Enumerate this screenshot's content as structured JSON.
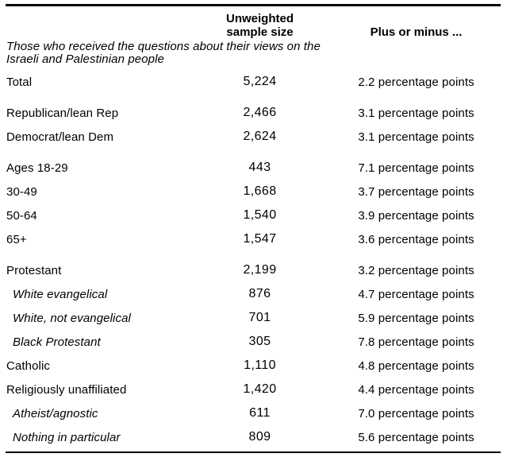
{
  "table": {
    "colors": {
      "text": "#000000",
      "rule": "#000000",
      "background": "#ffffff"
    },
    "header": {
      "sample_size_line1": "Unweighted",
      "sample_size_line2": "sample size",
      "moe": "Plus or minus ..."
    },
    "descriptor": "Those who received the questions about their views on the Israeli and Palestinian people",
    "rows": [
      {
        "label": "Total",
        "sample_size": "5,224",
        "moe": "2.2 percentage points",
        "italic": false,
        "group_start": false
      },
      {
        "label": "Republican/lean Rep",
        "sample_size": "2,466",
        "moe": "3.1 percentage points",
        "italic": false,
        "group_start": true
      },
      {
        "label": "Democrat/lean Dem",
        "sample_size": "2,624",
        "moe": "3.1 percentage points",
        "italic": false,
        "group_start": false
      },
      {
        "label": "Ages 18-29",
        "sample_size": "443",
        "moe": "7.1 percentage points",
        "italic": false,
        "group_start": true
      },
      {
        "label": "30-49",
        "sample_size": "1,668",
        "moe": "3.7 percentage points",
        "italic": false,
        "group_start": false
      },
      {
        "label": "50-64",
        "sample_size": "1,540",
        "moe": "3.9 percentage points",
        "italic": false,
        "group_start": false
      },
      {
        "label": "65+",
        "sample_size": "1,547",
        "moe": "3.6 percentage points",
        "italic": false,
        "group_start": false
      },
      {
        "label": "Protestant",
        "sample_size": "2,199",
        "moe": "3.2 percentage points",
        "italic": false,
        "group_start": true
      },
      {
        "label": "White evangelical",
        "sample_size": "876",
        "moe": "4.7 percentage points",
        "italic": true,
        "group_start": false
      },
      {
        "label": "White, not evangelical",
        "sample_size": "701",
        "moe": "5.9 percentage points",
        "italic": true,
        "group_start": false
      },
      {
        "label": "Black Protestant",
        "sample_size": "305",
        "moe": "7.8 percentage points",
        "italic": true,
        "group_start": false
      },
      {
        "label": "Catholic",
        "sample_size": "1,110",
        "moe": "4.8 percentage points",
        "italic": false,
        "group_start": false
      },
      {
        "label": "Religiously unaffiliated",
        "sample_size": "1,420",
        "moe": "4.4 percentage points",
        "italic": false,
        "group_start": false
      },
      {
        "label": "Atheist/agnostic",
        "sample_size": "611",
        "moe": "7.0 percentage points",
        "italic": true,
        "group_start": false
      },
      {
        "label": "Nothing in particular",
        "sample_size": "809",
        "moe": "5.6 percentage points",
        "italic": true,
        "group_start": false
      }
    ]
  },
  "chart_data": {
    "type": "table",
    "title": "",
    "columns": [
      "",
      "Unweighted sample size",
      "Plus or minus ..."
    ],
    "note": "Those who received the questions about their views on the Israeli and Palestinian people",
    "rows": [
      [
        "Total",
        "5,224",
        "2.2 percentage points"
      ],
      [
        "Republican/lean Rep",
        "2,466",
        "3.1 percentage points"
      ],
      [
        "Democrat/lean Dem",
        "2,624",
        "3.1 percentage points"
      ],
      [
        "Ages 18-29",
        "443",
        "7.1 percentage points"
      ],
      [
        "30-49",
        "1,668",
        "3.7 percentage points"
      ],
      [
        "50-64",
        "1,540",
        "3.9 percentage points"
      ],
      [
        "65+",
        "1,547",
        "3.6 percentage points"
      ],
      [
        "Protestant",
        "2,199",
        "3.2 percentage points"
      ],
      [
        "White evangelical",
        "876",
        "4.7 percentage points"
      ],
      [
        "White, not evangelical",
        "701",
        "5.9 percentage points"
      ],
      [
        "Black Protestant",
        "305",
        "7.8 percentage points"
      ],
      [
        "Catholic",
        "1,110",
        "4.8 percentage points"
      ],
      [
        "Religiously unaffiliated",
        "1,420",
        "4.4 percentage points"
      ],
      [
        "Atheist/agnostic",
        "611",
        "7.0 percentage points"
      ],
      [
        "Nothing in particular",
        "809",
        "5.6 percentage points"
      ]
    ]
  }
}
